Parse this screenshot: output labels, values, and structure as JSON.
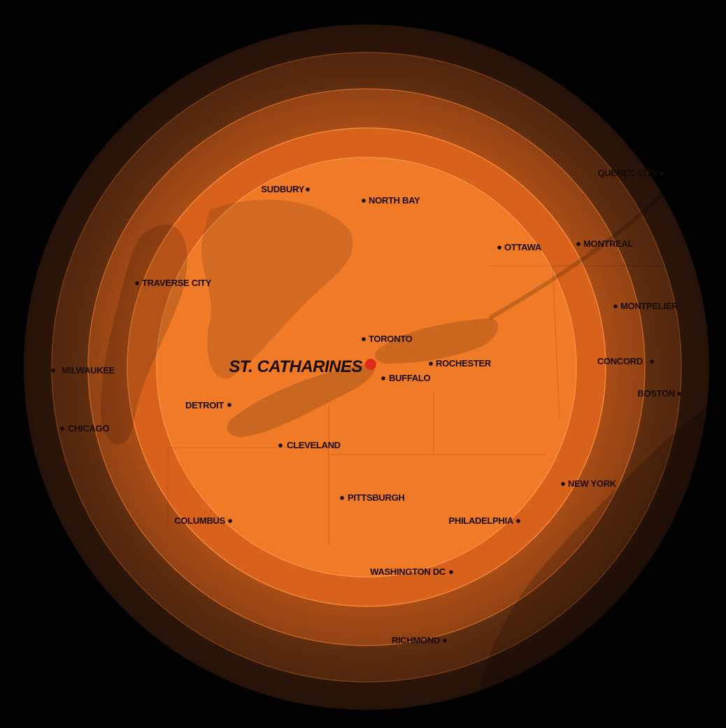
{
  "map": {
    "colors": {
      "background": "#000000",
      "outer_ring": "#3a1c0c",
      "ring_2": "#6e3412",
      "ring_3": "#a84c16",
      "ring_4": "#d8621c",
      "inner_disc": "#f07a26",
      "ring_stroke": "#f2873a",
      "land_shade": "#e06a1e",
      "water_shade": "#c9581a",
      "label": "#1a0a04",
      "center_marker": "#e02a1c"
    },
    "center_city": {
      "name": "ST. CATHARINES",
      "marker_icon": "red-dot-marker"
    },
    "cities": [
      {
        "id": "sudbury",
        "name": "SUDBURY"
      },
      {
        "id": "north-bay",
        "name": "NORTH BAY"
      },
      {
        "id": "quebec-city",
        "name": "QUEBEC CITY"
      },
      {
        "id": "ottawa",
        "name": "OTTAWA"
      },
      {
        "id": "montreal",
        "name": "MONTREAL"
      },
      {
        "id": "traverse-city",
        "name": "TRAVERSE CITY"
      },
      {
        "id": "montpelier",
        "name": "MONTPELIER"
      },
      {
        "id": "toronto",
        "name": "TORONTO"
      },
      {
        "id": "rochester",
        "name": "ROCHESTER"
      },
      {
        "id": "buffalo",
        "name": "BUFFALO"
      },
      {
        "id": "concord",
        "name": "CONCORD"
      },
      {
        "id": "milwaukee",
        "name": "MILWAUKEE"
      },
      {
        "id": "boston",
        "name": "BOSTON"
      },
      {
        "id": "detroit",
        "name": "DETROIT"
      },
      {
        "id": "chicago",
        "name": "CHICAGO"
      },
      {
        "id": "cleveland",
        "name": "CLEVELAND"
      },
      {
        "id": "new-york",
        "name": "NEW YORK"
      },
      {
        "id": "pittsburgh",
        "name": "PITTSBURGH"
      },
      {
        "id": "columbus",
        "name": "COLUMBUS"
      },
      {
        "id": "philadelphia",
        "name": "PHILADELPHIA"
      },
      {
        "id": "washington-dc",
        "name": "WASHINGTON DC"
      },
      {
        "id": "richmond",
        "name": "RICHMOND"
      }
    ]
  }
}
